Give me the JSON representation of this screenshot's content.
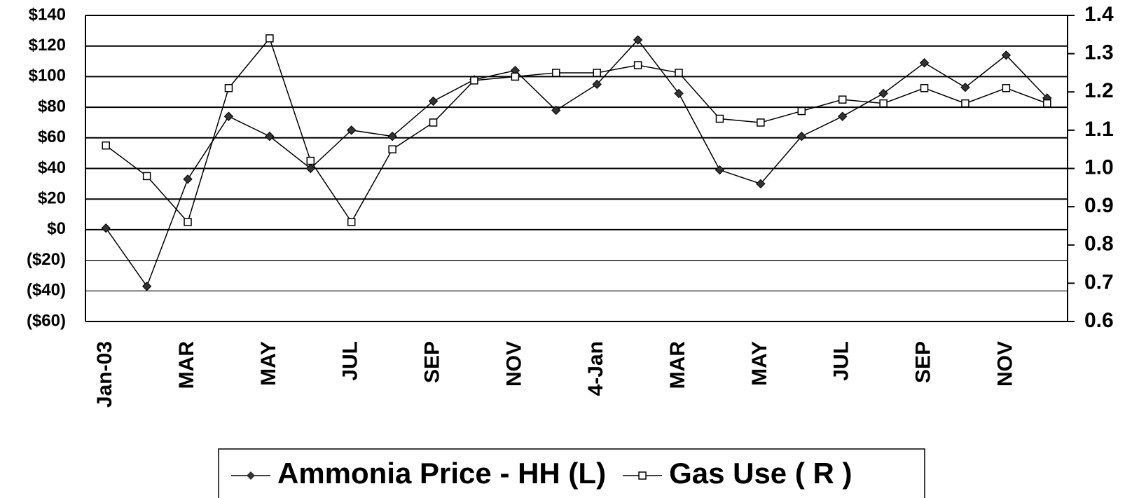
{
  "chart_data": {
    "type": "line",
    "categories": [
      "Jan-03",
      null,
      "MAR",
      null,
      "MAY",
      null,
      "JUL",
      null,
      "SEP",
      null,
      "NOV",
      null,
      "4-Jan",
      null,
      "MAR",
      null,
      "MAY",
      null,
      "JUL",
      null,
      "SEP",
      null,
      "NOV",
      null
    ],
    "series": [
      {
        "name": "Ammonia Price - HH (L)",
        "color": "#000000",
        "marker": "diamond",
        "axis": "y",
        "values": [
          1,
          -37,
          33,
          74,
          61,
          40,
          65,
          61,
          84,
          98,
          104,
          78,
          95,
          124,
          89,
          39,
          30,
          61,
          74,
          89,
          109,
          93,
          114,
          86
        ]
      },
      {
        "name": "Gas Use ( R )",
        "color": "#000000",
        "marker": "square",
        "axis": "y2",
        "values": [
          1.06,
          0.98,
          0.86,
          1.21,
          1.34,
          1.02,
          0.86,
          1.05,
          1.12,
          1.23,
          1.24,
          1.25,
          1.25,
          1.27,
          1.25,
          1.13,
          1.12,
          1.15,
          1.18,
          1.17,
          1.21,
          1.17,
          1.21,
          1.17
        ]
      }
    ],
    "ylim": [
      -60,
      140
    ],
    "yticks": [
      {
        "value": -60,
        "label": "($60)"
      },
      {
        "value": -40,
        "label": "($40)"
      },
      {
        "value": -20,
        "label": "($20)"
      },
      {
        "value": 0,
        "label": "$0"
      },
      {
        "value": 20,
        "label": "$20"
      },
      {
        "value": 40,
        "label": "$40"
      },
      {
        "value": 60,
        "label": "$60"
      },
      {
        "value": 80,
        "label": "$80"
      },
      {
        "value": 100,
        "label": "$100"
      },
      {
        "value": 120,
        "label": "$120"
      },
      {
        "value": 140,
        "label": "$140"
      }
    ],
    "y2lim": [
      0.6,
      1.4
    ],
    "y2ticks": [
      0.6,
      0.7,
      0.8,
      0.9,
      {
        "value": 1,
        "label": "1.0"
      },
      1.1,
      1.2,
      1.3,
      1.4
    ],
    "grid": true,
    "legend": "bottom"
  }
}
